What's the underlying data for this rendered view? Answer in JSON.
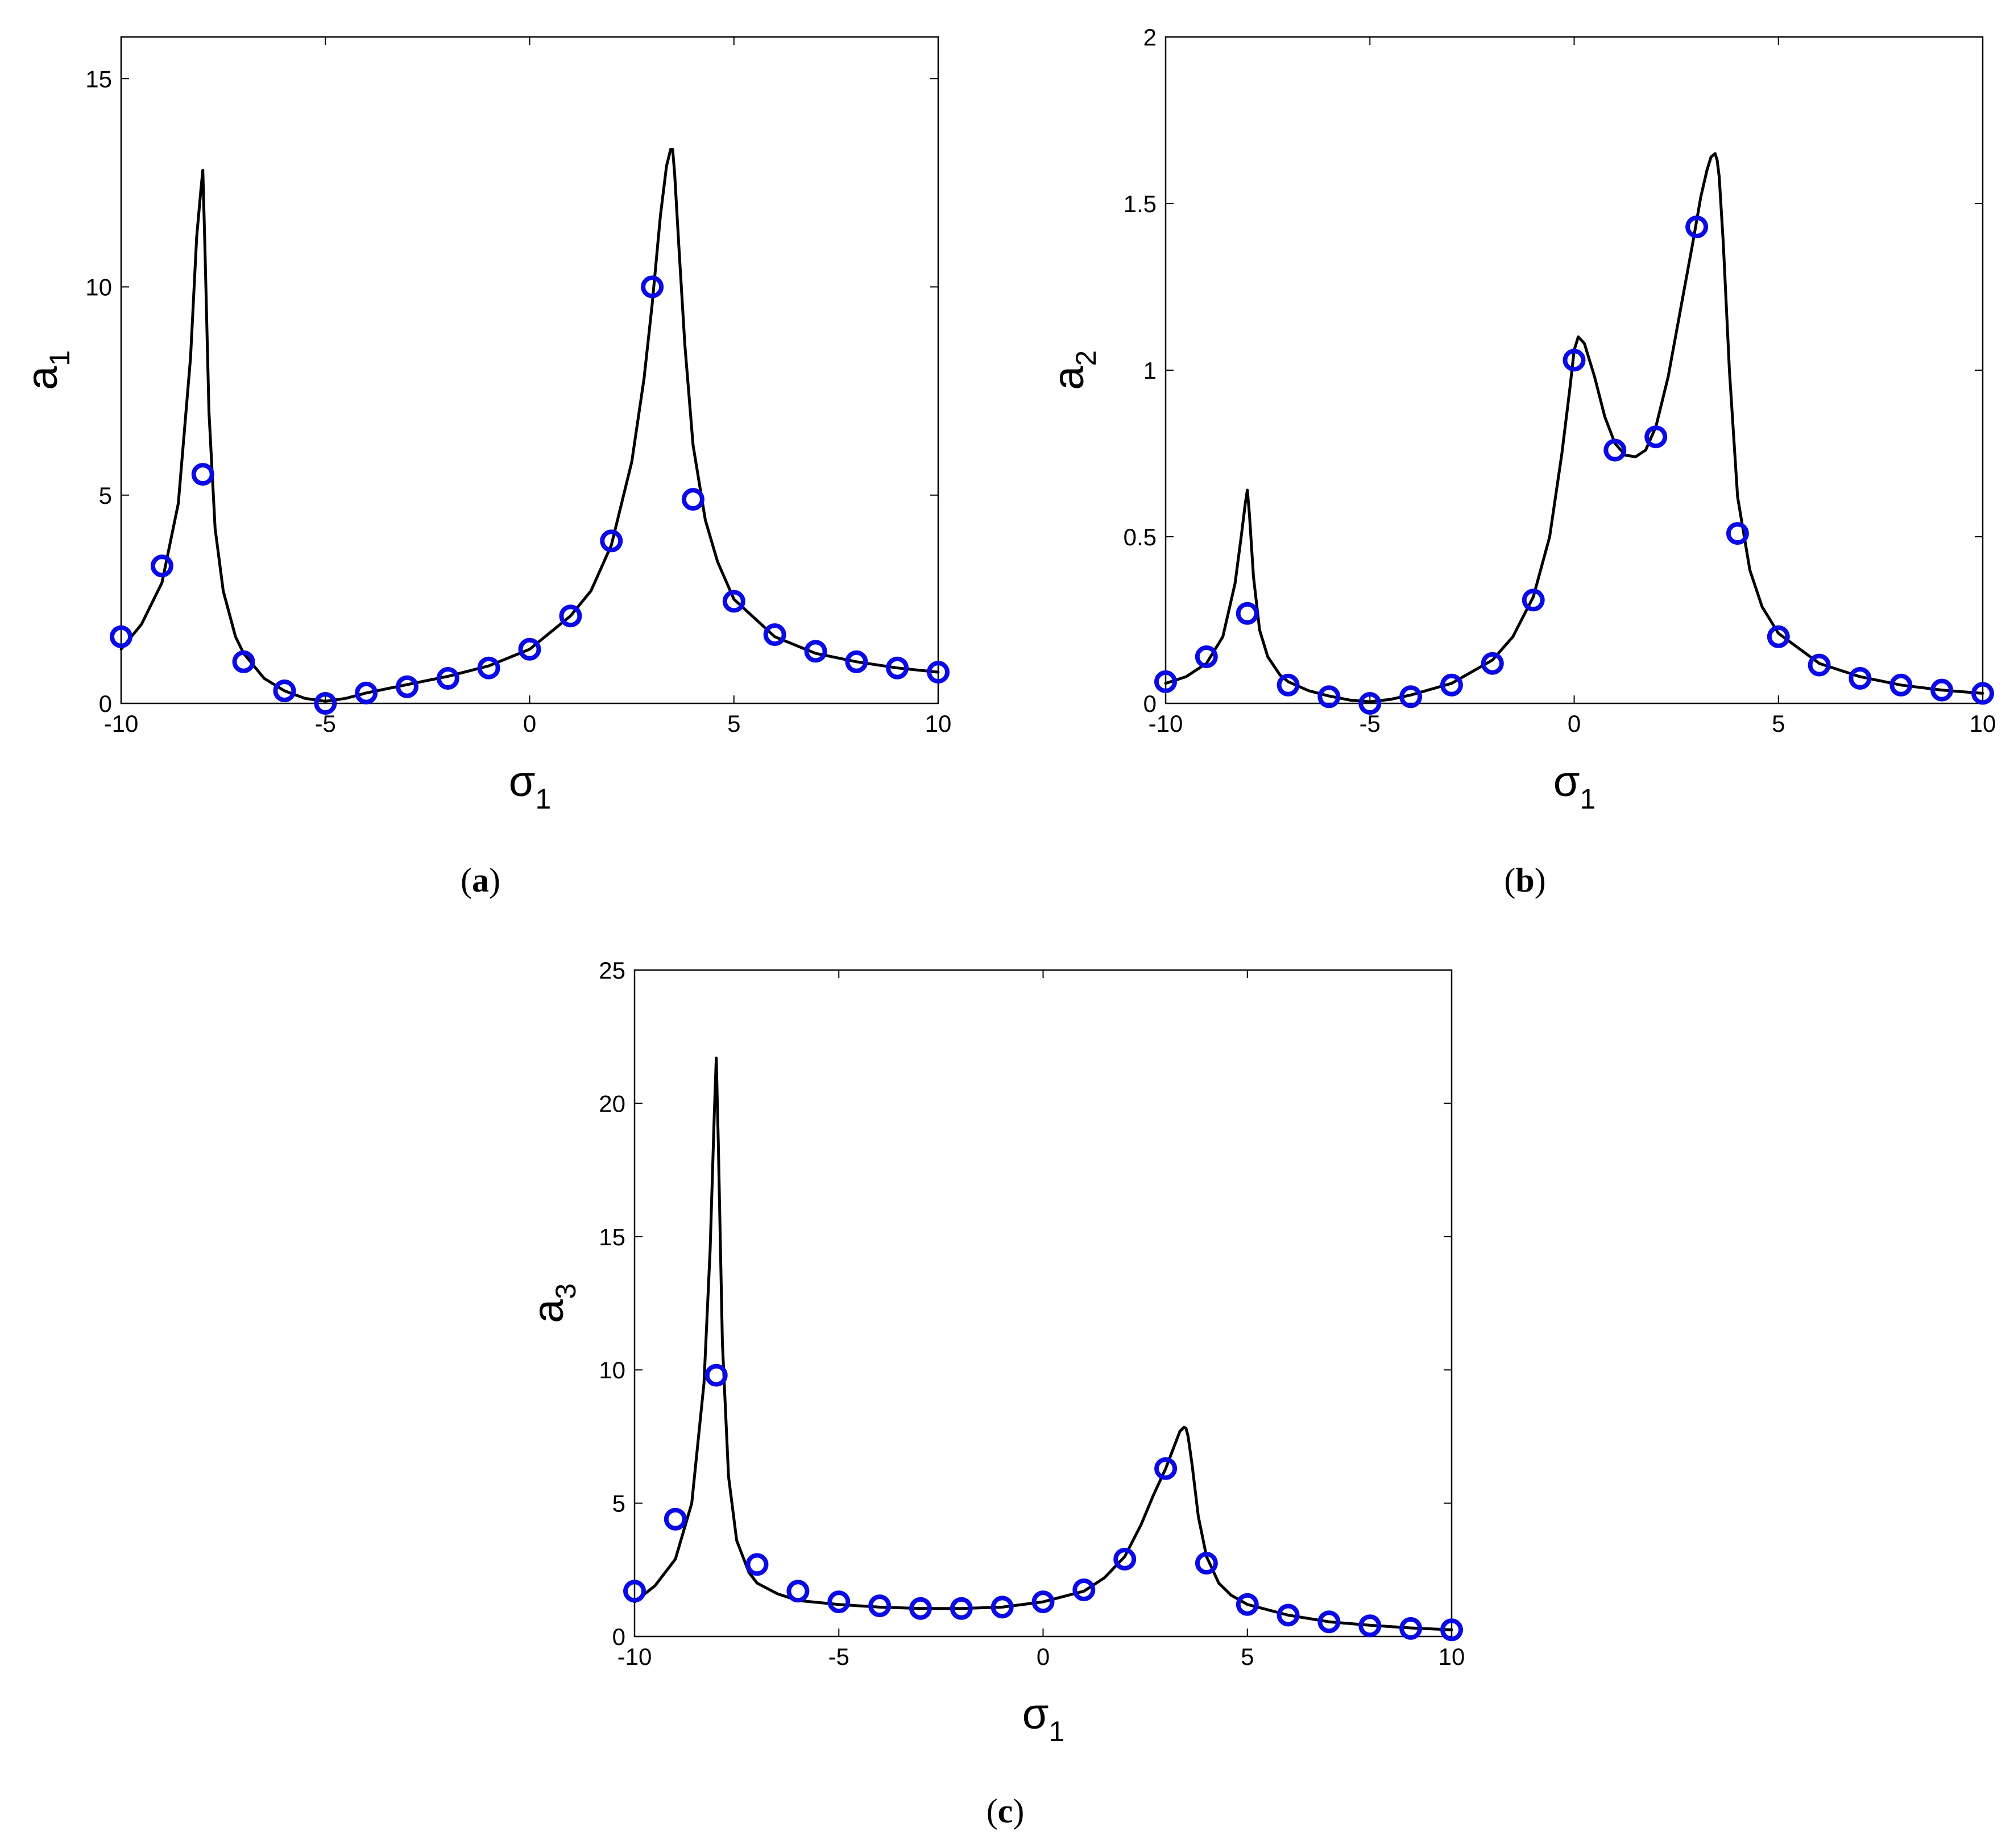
{
  "figure": {
    "colors": {
      "curve": "#000000",
      "markers": "#0a0ae6",
      "axes": "#000000"
    },
    "marker_icon": "circle-marker-icon"
  },
  "chart_data": [
    {
      "type": "line",
      "panel_label": "(a)",
      "caption": {
        "open": "(",
        "letter": "a",
        "close": ")"
      },
      "xlabel": {
        "main": "σ",
        "sub": "1"
      },
      "ylabel": {
        "main": "a",
        "sub": "1"
      },
      "xlim": [
        -10,
        10
      ],
      "ylim": [
        0,
        16
      ],
      "xticks": [
        "-10",
        "-5",
        "0",
        "5",
        "10"
      ],
      "yticks": [
        "0",
        "5",
        "10",
        "15"
      ],
      "grid": false,
      "series": [
        {
          "kind": "line",
          "x": [
            -10,
            -9.5,
            -9,
            -8.6,
            -8.3,
            -8.15,
            -8.05,
            -8,
            -7.95,
            -7.85,
            -7.7,
            -7.5,
            -7.2,
            -7,
            -6.5,
            -6,
            -5.5,
            -5,
            -4.5,
            -4,
            -3,
            -2,
            -1,
            0,
            1,
            1.5,
            2,
            2.5,
            2.8,
            3,
            3.2,
            3.35,
            3.45,
            3.5,
            3.55,
            3.65,
            3.8,
            4,
            4.3,
            4.6,
            5,
            6,
            7,
            8,
            9,
            10
          ],
          "y": [
            1.3,
            1.9,
            2.9,
            4.8,
            8.3,
            11.2,
            12.3,
            12.8,
            11.0,
            7.0,
            4.2,
            2.7,
            1.6,
            1.2,
            0.6,
            0.3,
            0.12,
            0.05,
            0.12,
            0.25,
            0.45,
            0.65,
            0.9,
            1.3,
            2.1,
            2.7,
            3.8,
            5.8,
            7.8,
            9.6,
            11.7,
            12.9,
            13.3,
            13.3,
            12.7,
            11.0,
            8.6,
            6.2,
            4.4,
            3.4,
            2.5,
            1.6,
            1.2,
            1.0,
            0.85,
            0.75
          ]
        },
        {
          "kind": "markers",
          "x": [
            -10,
            -9,
            -8,
            -7,
            -6,
            -5,
            -4,
            -3,
            -2,
            -1,
            0,
            1,
            2,
            3,
            4,
            5,
            6,
            7,
            8,
            9,
            10
          ],
          "y": [
            1.6,
            3.3,
            5.5,
            1.0,
            0.3,
            0.0,
            0.25,
            0.4,
            0.6,
            0.85,
            1.3,
            2.1,
            3.9,
            10.0,
            4.9,
            2.45,
            1.65,
            1.25,
            1.0,
            0.85,
            0.75
          ]
        }
      ]
    },
    {
      "type": "line",
      "panel_label": "(b)",
      "caption": {
        "open": "(",
        "letter": "b",
        "close": ")"
      },
      "xlabel": {
        "main": "σ",
        "sub": "1"
      },
      "ylabel": {
        "main": "a",
        "sub": "2"
      },
      "xlim": [
        -10,
        10
      ],
      "ylim": [
        0,
        2
      ],
      "xticks": [
        "-10",
        "-5",
        "0",
        "5",
        "10"
      ],
      "yticks": [
        "0",
        "0.5",
        "1",
        "1.5",
        "2"
      ],
      "grid": false,
      "series": [
        {
          "kind": "line",
          "x": [
            -10,
            -9.5,
            -9,
            -8.6,
            -8.3,
            -8.15,
            -8.05,
            -8,
            -7.95,
            -7.85,
            -7.7,
            -7.5,
            -7.2,
            -7,
            -6.5,
            -6,
            -5.5,
            -5,
            -4.5,
            -4,
            -3,
            -2,
            -1.5,
            -1,
            -0.6,
            -0.3,
            -0.1,
            0,
            0.1,
            0.25,
            0.5,
            0.75,
            1,
            1.25,
            1.5,
            1.75,
            2,
            2.3,
            2.6,
            2.9,
            3.1,
            3.25,
            3.35,
            3.45,
            3.5,
            3.55,
            3.65,
            3.8,
            4,
            4.3,
            4.6,
            5,
            6,
            7,
            8,
            9,
            10
          ],
          "y": [
            0.06,
            0.08,
            0.12,
            0.2,
            0.36,
            0.5,
            0.6,
            0.64,
            0.57,
            0.38,
            0.22,
            0.14,
            0.085,
            0.065,
            0.038,
            0.022,
            0.01,
            0.005,
            0.012,
            0.025,
            0.06,
            0.13,
            0.2,
            0.32,
            0.5,
            0.75,
            0.95,
            1.06,
            1.1,
            1.08,
            0.98,
            0.86,
            0.78,
            0.745,
            0.74,
            0.76,
            0.83,
            0.98,
            1.18,
            1.38,
            1.52,
            1.6,
            1.64,
            1.65,
            1.63,
            1.58,
            1.38,
            1.0,
            0.62,
            0.4,
            0.29,
            0.21,
            0.12,
            0.08,
            0.055,
            0.04,
            0.03
          ]
        },
        {
          "kind": "markers",
          "x": [
            -10,
            -9,
            -8,
            -7,
            -6,
            -5,
            -4,
            -3,
            -2,
            -1,
            0,
            1,
            2,
            3,
            4,
            5,
            6,
            7,
            8,
            9,
            10
          ],
          "y": [
            0.065,
            0.14,
            0.27,
            0.055,
            0.02,
            0.0,
            0.02,
            0.055,
            0.12,
            0.31,
            1.03,
            0.76,
            0.8,
            1.43,
            0.51,
            0.2,
            0.115,
            0.075,
            0.055,
            0.04,
            0.03
          ]
        }
      ]
    },
    {
      "type": "line",
      "panel_label": "(c)",
      "caption": {
        "open": "(",
        "letter": "c",
        "close": ")"
      },
      "xlabel": {
        "main": "σ",
        "sub": "1"
      },
      "ylabel": {
        "main": "a",
        "sub": "3"
      },
      "xlim": [
        -10,
        10
      ],
      "ylim": [
        0,
        25
      ],
      "xticks": [
        "-10",
        "-5",
        "0",
        "5",
        "10"
      ],
      "yticks": [
        "0",
        "5",
        "10",
        "15",
        "20",
        "25"
      ],
      "grid": false,
      "series": [
        {
          "kind": "line",
          "x": [
            -10,
            -9.5,
            -9,
            -8.6,
            -8.3,
            -8.15,
            -8.05,
            -8,
            -7.95,
            -7.85,
            -7.7,
            -7.5,
            -7.2,
            -7,
            -6.5,
            -6,
            -5,
            -4,
            -3,
            -2,
            -1,
            0,
            1,
            1.5,
            2,
            2.4,
            2.7,
            3,
            3.2,
            3.35,
            3.45,
            3.5,
            3.55,
            3.65,
            3.8,
            4,
            4.3,
            4.6,
            5,
            6,
            7,
            8,
            9,
            10
          ],
          "y": [
            1.3,
            1.9,
            2.9,
            5.0,
            9.5,
            14.5,
            19.5,
            21.7,
            18.5,
            11.0,
            6.0,
            3.6,
            2.4,
            2.0,
            1.6,
            1.35,
            1.2,
            1.1,
            1.05,
            1.05,
            1.1,
            1.3,
            1.7,
            2.2,
            3.0,
            4.2,
            5.3,
            6.3,
            7.1,
            7.7,
            7.85,
            7.8,
            7.5,
            6.4,
            4.5,
            3.0,
            2.0,
            1.55,
            1.2,
            0.8,
            0.55,
            0.42,
            0.32,
            0.25
          ]
        },
        {
          "kind": "markers",
          "x": [
            -10,
            -9,
            -8,
            -7,
            -6,
            -5,
            -4,
            -3,
            -2,
            -1,
            0,
            1,
            2,
            3,
            4,
            5,
            6,
            7,
            8,
            9,
            10
          ],
          "y": [
            1.7,
            4.4,
            9.8,
            2.7,
            1.7,
            1.3,
            1.15,
            1.05,
            1.05,
            1.1,
            1.3,
            1.75,
            2.9,
            6.3,
            2.75,
            1.2,
            0.8,
            0.55,
            0.4,
            0.3,
            0.25
          ]
        }
      ]
    }
  ]
}
